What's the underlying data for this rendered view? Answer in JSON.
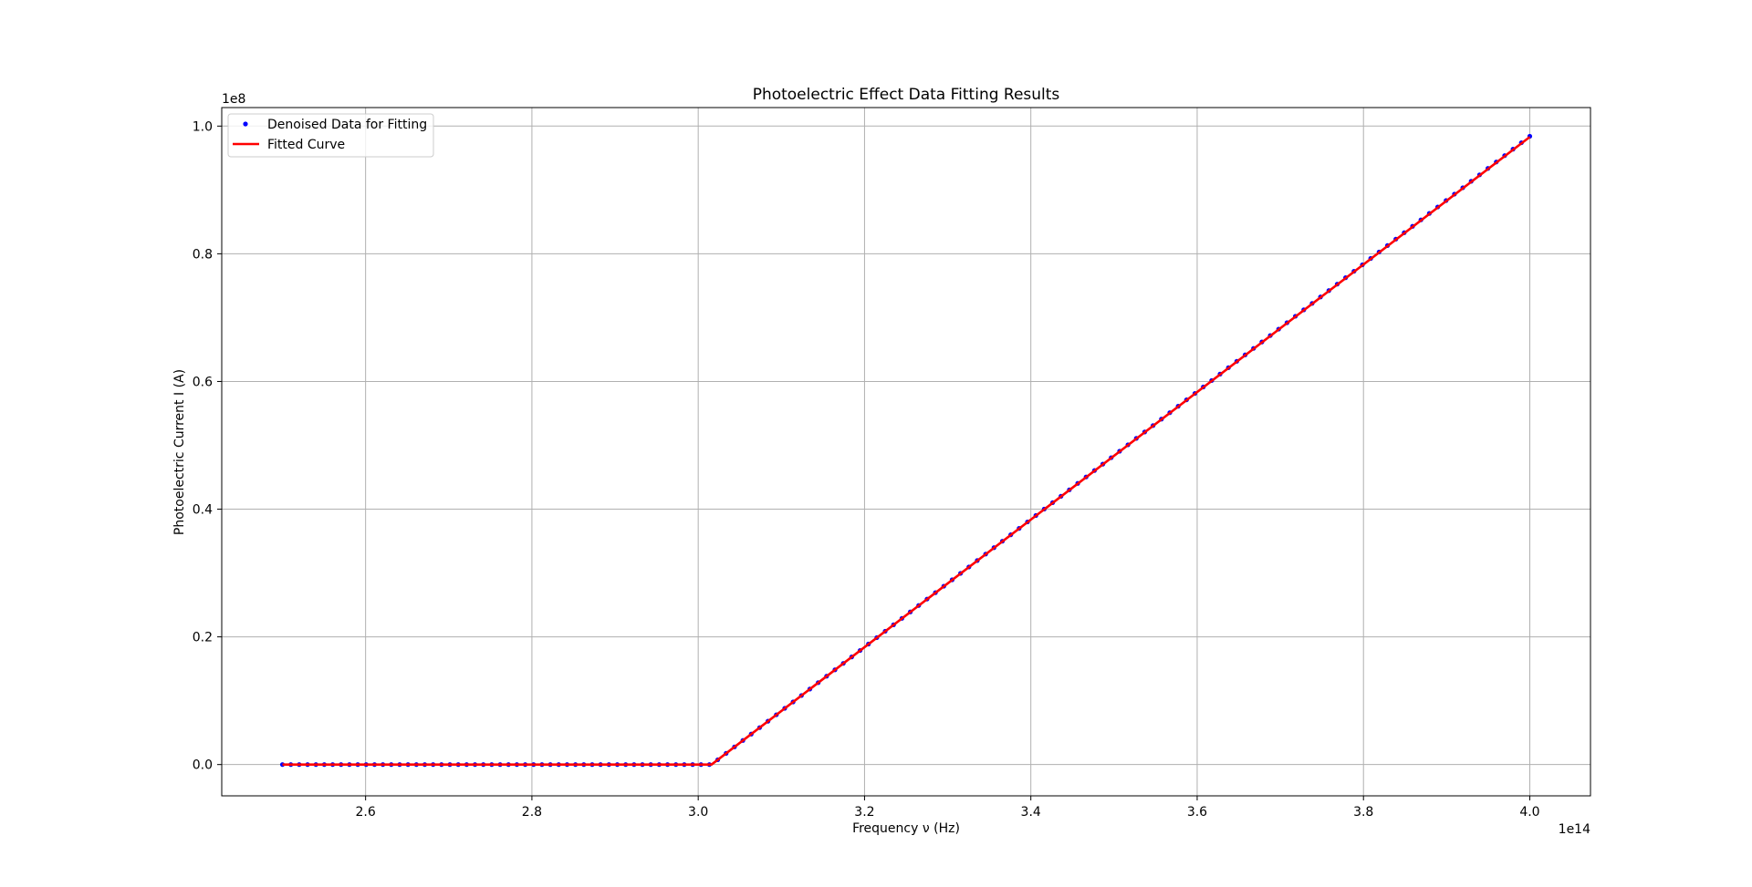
{
  "chart_data": {
    "type": "line",
    "title": "Photoelectric Effect Data Fitting Results",
    "xlabel": "Frequency ν (Hz)",
    "ylabel": "Photoelectric Current I (A)",
    "x_offset_text": "1e14",
    "y_offset_text": "1e8",
    "x_scale_factor": 100000000000000,
    "y_scale_factor": 100000000,
    "xlim": [
      2.427,
      4.073
    ],
    "ylim": [
      -0.049,
      1.029
    ],
    "x_ticks": [
      2.6,
      2.8,
      3.0,
      3.2,
      3.4,
      3.6,
      3.8,
      4.0
    ],
    "x_tick_labels": [
      "2.6",
      "2.8",
      "3.0",
      "3.2",
      "3.4",
      "3.6",
      "3.8",
      "4.0"
    ],
    "y_ticks": [
      0.0,
      0.2,
      0.4,
      0.6,
      0.8,
      1.0
    ],
    "y_tick_labels": [
      "0.0",
      "0.2",
      "0.4",
      "0.6",
      "0.8",
      "1.0"
    ],
    "grid": true,
    "legend_position": "top-left",
    "series": [
      {
        "name": "Denoised Data for Fitting",
        "kind": "scatter",
        "color": "#0000ff",
        "x_start": 2.5,
        "x_end": 4.0,
        "num_points": 150,
        "threshold": 3.016,
        "slope": 1.0
      },
      {
        "name": "Fitted Curve",
        "kind": "line",
        "color": "#ff0000",
        "x": [
          2.5,
          3.016,
          4.0
        ],
        "y": [
          0.0,
          0.0,
          0.983
        ]
      }
    ]
  }
}
